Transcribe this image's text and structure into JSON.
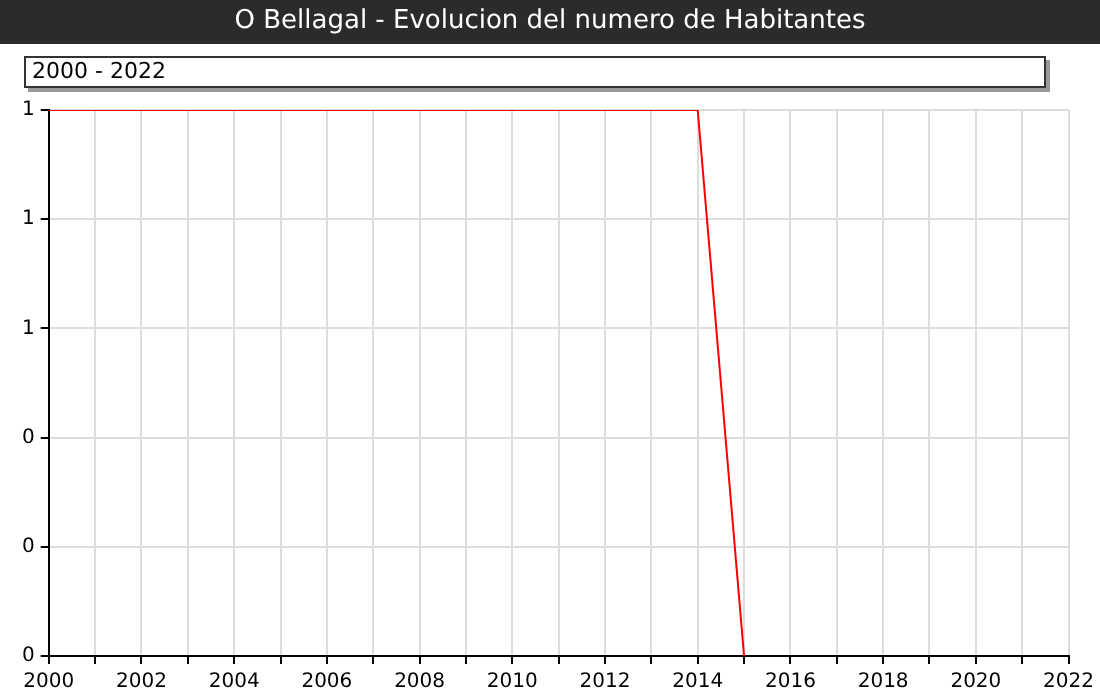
{
  "chart_data": {
    "type": "line",
    "title": "O Bellagal - Evolucion del numero de Habitantes",
    "subtitle": "2000 - 2022",
    "x": [
      2000,
      2001,
      2002,
      2003,
      2004,
      2005,
      2006,
      2007,
      2008,
      2009,
      2010,
      2011,
      2012,
      2013,
      2014,
      2015
    ],
    "series": [
      {
        "color": "#ff0000",
        "values": [
          1,
          1,
          1,
          1,
          1,
          1,
          1,
          1,
          1,
          1,
          1,
          1,
          1,
          1,
          1,
          0
        ]
      }
    ],
    "xlim": [
      2000,
      2022
    ],
    "xticks": [
      2000,
      {
        "value": 2001,
        "label": null
      },
      2002,
      {
        "value": 2003,
        "label": null
      },
      2004,
      {
        "value": 2005,
        "label": null
      },
      2006,
      {
        "value": 2007,
        "label": null
      },
      2008,
      {
        "value": 2009,
        "label": null
      },
      2010,
      {
        "value": 2011,
        "label": null
      },
      2012,
      {
        "value": 2013,
        "label": null
      },
      2014,
      {
        "value": 2015,
        "label": null
      },
      2016,
      {
        "value": 2017,
        "label": null
      },
      2018,
      {
        "value": 2019,
        "label": null
      },
      2020,
      {
        "value": 2021,
        "label": null
      },
      2022
    ],
    "ylim": [
      0,
      1
    ],
    "yticks": [
      0,
      {
        "value": 0.2,
        "label": "0"
      },
      {
        "value": 0.4,
        "label": "0"
      },
      {
        "value": 0.6,
        "label": "1"
      },
      {
        "value": 0.8,
        "label": "1"
      },
      1
    ],
    "grid": true,
    "legend": false,
    "marker": "none",
    "line_style": "solid"
  }
}
